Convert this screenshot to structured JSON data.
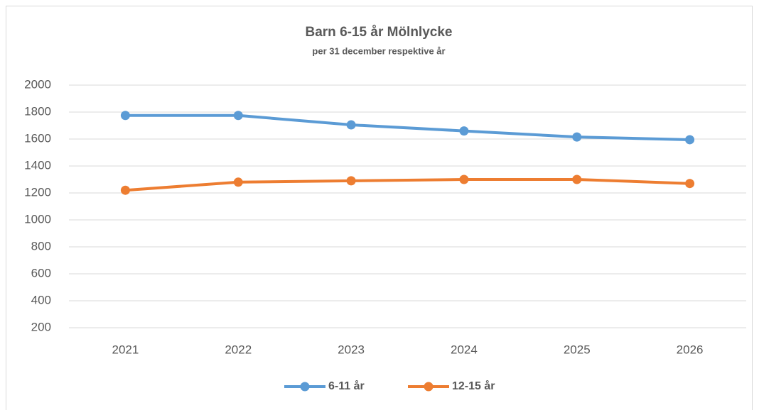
{
  "chart_data": {
    "type": "line",
    "title": "Barn 6-15 år Mölnlycke",
    "subtitle": "per 31 december respektive år",
    "categories": [
      "2021",
      "2022",
      "2023",
      "2024",
      "2025",
      "2026"
    ],
    "series": [
      {
        "name": "6-11 år",
        "color": "#5b9bd5",
        "values": [
          1775,
          1775,
          1705,
          1660,
          1615,
          1595
        ]
      },
      {
        "name": "12-15 år",
        "color": "#ed7d31",
        "values": [
          1220,
          1280,
          1290,
          1300,
          1300,
          1270
        ]
      }
    ],
    "ylim": [
      200,
      2000
    ],
    "yticks": [
      200,
      400,
      600,
      800,
      1000,
      1200,
      1400,
      1600,
      1800,
      2000
    ],
    "grid": true,
    "legend": "bottom"
  }
}
